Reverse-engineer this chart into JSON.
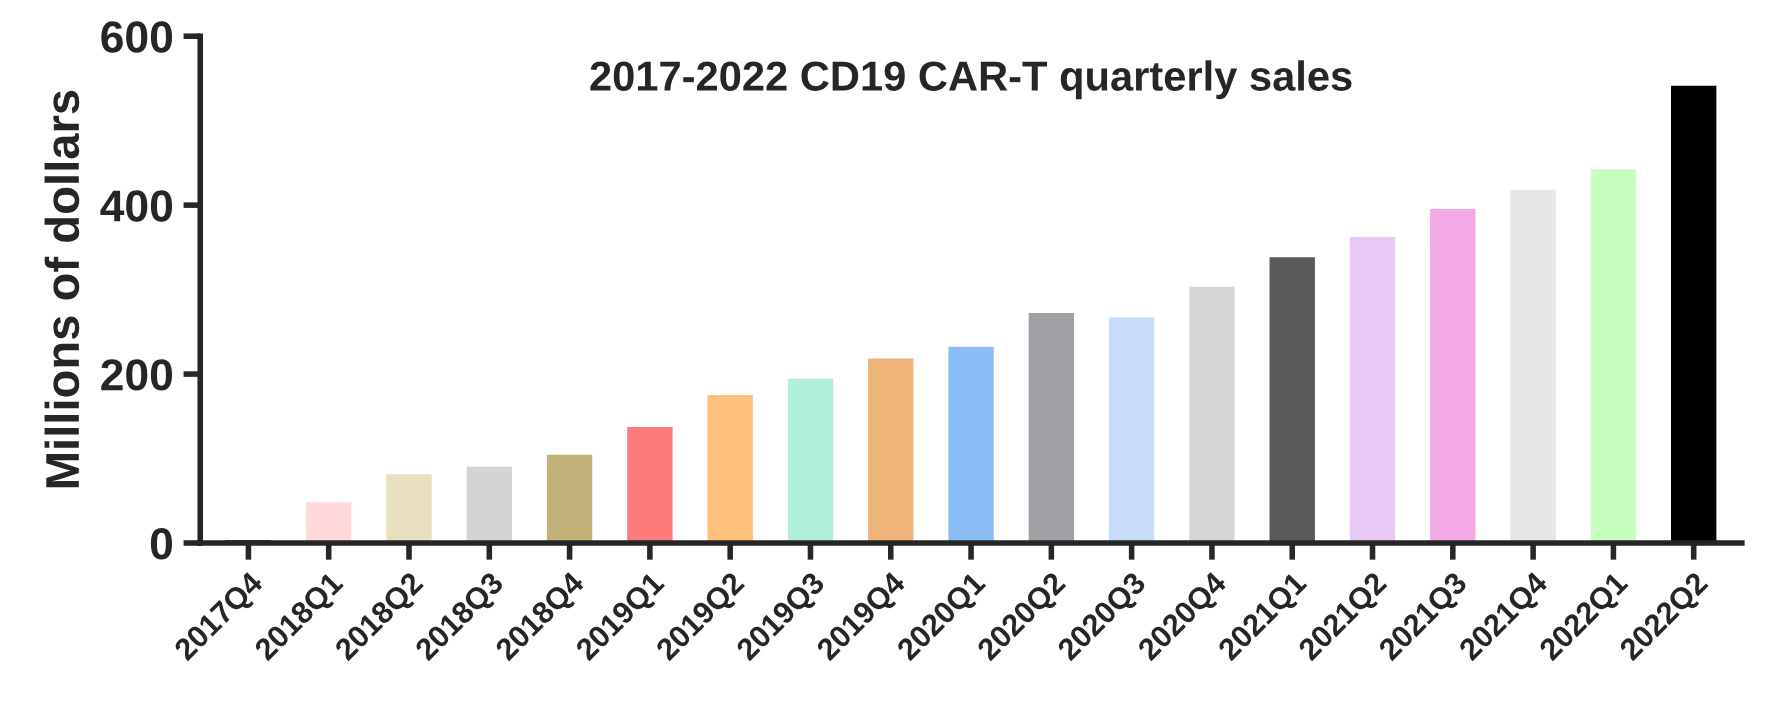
{
  "chart_data": {
    "type": "bar",
    "title": "2017-2022 CD19 CAR-T quarterly sales",
    "ylabel": "Millions of dollars",
    "categories": [
      "2017Q4",
      "2018Q1",
      "2018Q2",
      "2018Q3",
      "2018Q4",
      "2019Q1",
      "2019Q2",
      "2019Q3",
      "2019Q4",
      "2020Q1",
      "2020Q2",
      "2020Q3",
      "2020Q4",
      "2021Q1",
      "2021Q2",
      "2021Q3",
      "2021Q4",
      "2022Q1",
      "2022Q2"
    ],
    "values": [
      5,
      50,
      83,
      92,
      106,
      139,
      177,
      196,
      220,
      234,
      274,
      269,
      305,
      340,
      364,
      397,
      420,
      444,
      543
    ],
    "colors": [
      "#000000",
      "#ffd9d9",
      "#e8dfc0",
      "#d4d4d4",
      "#c2b27a",
      "#ff7b7b",
      "#ffc07b",
      "#b0f0d8",
      "#f0b47a",
      "#8cbcf5",
      "#a0a0a5",
      "#c8dcf8",
      "#d6d6d6",
      "#5a5a5a",
      "#e8c8f5",
      "#f5a8e6",
      "#e6e6e6",
      "#c8ffc0",
      "#000000"
    ],
    "ylim": [
      0,
      600
    ],
    "yticks": [
      0,
      200,
      400,
      600
    ],
    "grid": false,
    "legend": false
  }
}
